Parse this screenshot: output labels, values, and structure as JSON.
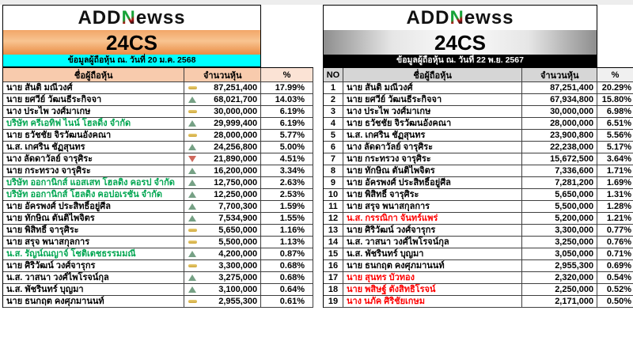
{
  "logo": {
    "add": "ADD",
    "n": "N",
    "rest": "ewss"
  },
  "left": {
    "ticker": "24CS",
    "date_label": "ข้อมูลผู้ถือหุ้น ณ. วันที่  20 ม.ค. 2568",
    "columns": {
      "name": "ชื่อผู้ถือหุ้น",
      "shares": "จำนวนหุ้น",
      "percent": "%"
    },
    "rows": [
      {
        "name": "นาย สันติ มณีวงศ์",
        "icon": "dash",
        "shares": "87,251,400",
        "percent": "17.99%",
        "name_color": "black"
      },
      {
        "name": "นาย ยศวีย์ วัฒนธีระกิจจา",
        "icon": "up",
        "shares": "68,021,700",
        "percent": "14.03%",
        "name_color": "black"
      },
      {
        "name": "นาง ประไพ วงศ์มาเกษ",
        "icon": "dash",
        "shares": "30,000,000",
        "percent": "6.19%",
        "name_color": "black"
      },
      {
        "name": "บริษัท ครีเอทิฟ ไนน์ โฮลดิ้ง จำกัด",
        "icon": "up",
        "shares": "29,999,400",
        "percent": "6.19%",
        "name_color": "green"
      },
      {
        "name": "นาย ธวัชชัย จิรวัฒนอังคณา",
        "icon": "dash",
        "shares": "28,000,000",
        "percent": "5.77%",
        "name_color": "black"
      },
      {
        "name": "น.ส. เกศริน ชัฏสุนทร",
        "icon": "up",
        "shares": "24,256,800",
        "percent": "5.00%",
        "name_color": "black"
      },
      {
        "name": "นาง ลัดดาวัลย์ จารุศิระ",
        "icon": "down",
        "shares": "21,890,000",
        "percent": "4.51%",
        "name_color": "black"
      },
      {
        "name": "นาย กระทรวง จารุศิระ",
        "icon": "up",
        "shares": "16,200,000",
        "percent": "3.34%",
        "name_color": "black"
      },
      {
        "name": "บริษัท ออกานิกส์ แอสเสท โฮลดิง คอรป จำกัด",
        "icon": "up",
        "shares": "12,750,000",
        "percent": "2.63%",
        "name_color": "green"
      },
      {
        "name": "บริษัท ออกานิกส์ โฮลดิง คอปอเรชัน จำกัด",
        "icon": "up",
        "shares": "12,250,000",
        "percent": "2.53%",
        "name_color": "green"
      },
      {
        "name": "นาย อัครพงศ์ ประสิทธิ์อยู่ศีล",
        "icon": "up",
        "shares": "7,700,300",
        "percent": "1.59%",
        "name_color": "black"
      },
      {
        "name": "นาย ทักษิณ ตันติไพจิตร",
        "icon": "up",
        "shares": "7,534,900",
        "percent": "1.55%",
        "name_color": "black"
      },
      {
        "name": "นาย พิสิทธิ์ จารุศิระ",
        "icon": "dash",
        "shares": "5,650,000",
        "percent": "1.16%",
        "name_color": "black"
      },
      {
        "name": "นาย สรุจ พนาสกุลการ",
        "icon": "dash",
        "shares": "5,500,000",
        "percent": "1.13%",
        "name_color": "black"
      },
      {
        "name": "น.ส. รัญน์ณญาจ์ โชติเตชธรรมมณี",
        "icon": "up",
        "shares": "4,200,000",
        "percent": "0.87%",
        "name_color": "green"
      },
      {
        "name": "นาย ศิริวัฒน์ วงศ์จารุกร",
        "icon": "dash",
        "shares": "3,300,000",
        "percent": "0.68%",
        "name_color": "black"
      },
      {
        "name": "น.ส. วาสนา วงศ์ไพโรจน์กุล",
        "icon": "up",
        "shares": "3,275,000",
        "percent": "0.68%",
        "name_color": "black"
      },
      {
        "name": "น.ส. พัชรินทร์ บุญมา",
        "icon": "up",
        "shares": "3,100,000",
        "percent": "0.64%",
        "name_color": "black"
      },
      {
        "name": "นาย ธนกฤต คงศุภมานนท์",
        "icon": "dash",
        "shares": "2,955,300",
        "percent": "0.61%",
        "name_color": "black"
      }
    ]
  },
  "right": {
    "ticker": "24CS",
    "date_label": "ข้อมูลผู้ถือหุ้น ณ. วันที่  22 พ.ย. 2567",
    "columns": {
      "no": "NO",
      "name": "ชื่อผู้ถือหุ้น",
      "shares": "จำนวนหุ้น",
      "percent": "%"
    },
    "rows": [
      {
        "no": "1",
        "name": "นาย สันติ มณีวงศ์",
        "shares": "87,251,400",
        "percent": "20.29%",
        "name_color": "black"
      },
      {
        "no": "2",
        "name": "นาย ยศวีย์ วัฒนธีระกิจจา",
        "shares": "67,934,800",
        "percent": "15.80%",
        "name_color": "black"
      },
      {
        "no": "3",
        "name": "นาง ประไพ วงศ์มาเกษ",
        "shares": "30,000,000",
        "percent": "6.98%",
        "name_color": "black"
      },
      {
        "no": "4",
        "name": "นาย ธวัชชัย จิรวัฒนอังคณา",
        "shares": "28,000,000",
        "percent": "6.51%",
        "name_color": "black"
      },
      {
        "no": "5",
        "name": "น.ส. เกศริน ชัฏสุนทร",
        "shares": "23,900,800",
        "percent": "5.56%",
        "name_color": "black"
      },
      {
        "no": "6",
        "name": "นาง ลัดดาวัลย์ จารุศิระ",
        "shares": "22,238,000",
        "percent": "5.17%",
        "name_color": "black"
      },
      {
        "no": "7",
        "name": "นาย กระทรวง จารุศิระ",
        "shares": "15,672,500",
        "percent": "3.64%",
        "name_color": "black"
      },
      {
        "no": "8",
        "name": "นาย ทักษิณ ตันติไพจิตร",
        "shares": "7,336,600",
        "percent": "1.71%",
        "name_color": "black"
      },
      {
        "no": "9",
        "name": "นาย อัครพงศ์ ประสิทธิ์อยู่ศีล",
        "shares": "7,281,200",
        "percent": "1.69%",
        "name_color": "black"
      },
      {
        "no": "10",
        "name": "นาย พิสิทธิ์ จารุศิระ",
        "shares": "5,650,000",
        "percent": "1.31%",
        "name_color": "black"
      },
      {
        "no": "11",
        "name": "นาย สรุจ พนาสกุลการ",
        "shares": "5,500,000",
        "percent": "1.28%",
        "name_color": "black"
      },
      {
        "no": "12",
        "name": "น.ส. กรรณิกา จันทร์แพร่",
        "shares": "5,200,000",
        "percent": "1.21%",
        "name_color": "red"
      },
      {
        "no": "13",
        "name": "นาย ศิริวัฒน์ วงศ์จารุกร",
        "shares": "3,300,000",
        "percent": "0.77%",
        "name_color": "black"
      },
      {
        "no": "14",
        "name": "น.ส. วาสนา วงศ์ไพโรจน์กุล",
        "shares": "3,250,000",
        "percent": "0.76%",
        "name_color": "black"
      },
      {
        "no": "15",
        "name": "น.ส. พัชรินทร์ บุญมา",
        "shares": "3,050,000",
        "percent": "0.71%",
        "name_color": "black"
      },
      {
        "no": "16",
        "name": "นาย ธนกฤต คงศุภมานนท์",
        "shares": "2,955,300",
        "percent": "0.69%",
        "name_color": "black"
      },
      {
        "no": "17",
        "name": "นาย สุนทร บัวทอง",
        "shares": "2,320,000",
        "percent": "0.54%",
        "name_color": "red"
      },
      {
        "no": "18",
        "name": "นาย พสิษฐ์ ตังสิทธิโรจน์",
        "shares": "2,250,000",
        "percent": "0.52%",
        "name_color": "red"
      },
      {
        "no": "19",
        "name": "นาง นภัค ศิริชัยเกษม",
        "shares": "2,171,000",
        "percent": "0.50%",
        "name_color": "red"
      }
    ]
  },
  "colors": {
    "left_banner_orange": "#f2a160",
    "left_date_bg": "#00ffff",
    "left_header_bg": "#f8cbad",
    "right_banner_silver": "#c9c9c9",
    "right_date_bg": "#000000",
    "right_header_bg": "#d6d6d6",
    "green_name": "#00a651",
    "red_name": "#fe0000",
    "icon_up_green": "#76a185",
    "icon_down_red": "#cf685c",
    "icon_dash_yellow": "#d9b74e",
    "logo_n_green": "#17a338"
  },
  "icon_legend": {
    "dash": "no-change",
    "up": "increase",
    "down": "decrease"
  }
}
